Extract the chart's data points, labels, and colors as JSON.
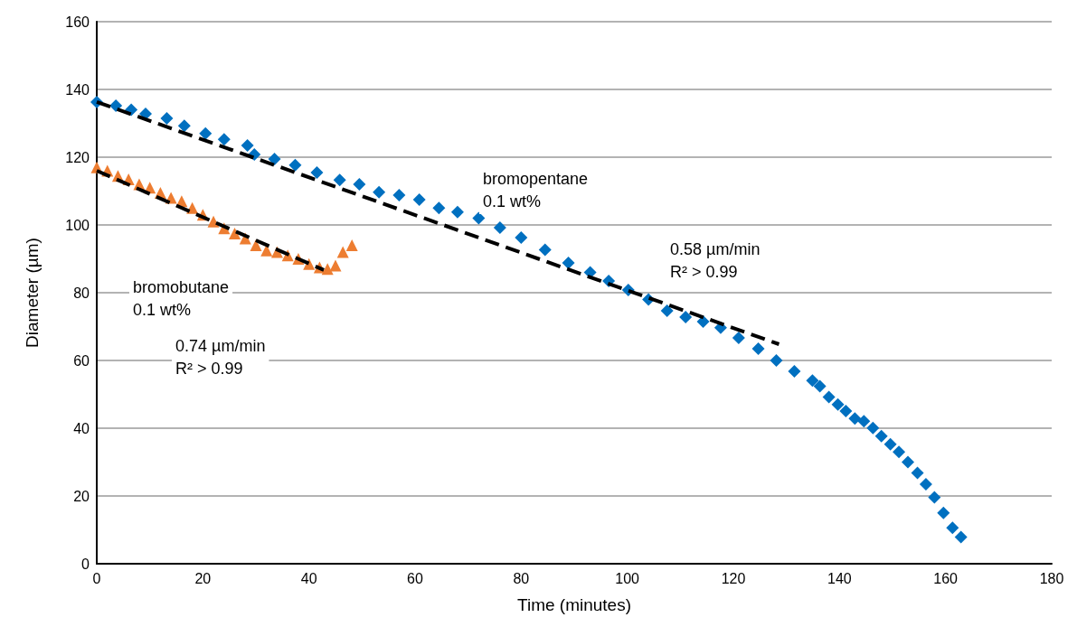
{
  "chart_data": {
    "type": "scatter",
    "xlabel": "Time (minutes)",
    "ylabel": "Diameter (µm)",
    "xlim": [
      0,
      180
    ],
    "xticks": [
      0,
      20,
      40,
      60,
      80,
      100,
      120,
      140,
      160,
      180
    ],
    "ylim": [
      0,
      160
    ],
    "yticks": [
      0,
      20,
      40,
      60,
      80,
      100,
      120,
      140,
      160
    ],
    "grid": "y",
    "series": [
      {
        "color": "#0070c0",
        "marker": "diamond",
        "x": [
          0,
          3.6,
          6.5,
          9.2,
          13.2,
          16.5,
          20.5,
          24,
          28.4,
          29.7,
          33.5,
          37.4,
          41.5,
          45.8,
          49.5,
          53.2,
          57,
          60.8,
          64.5,
          68,
          72,
          76,
          80,
          84.5,
          88.9,
          93,
          96.5,
          100.2,
          104,
          107.5,
          111,
          114.3,
          117.6,
          121,
          124.7,
          128.1,
          131.5,
          134.9,
          136.3,
          138,
          139.7,
          141.2,
          142.9,
          144.6,
          146.3,
          147.9,
          149.6,
          151.2,
          152.9,
          154.7,
          156.3,
          157.9,
          159.6,
          161.3,
          162.9
        ],
        "values": [
          136.3,
          135.2,
          134,
          132.8,
          131.5,
          129.3,
          127,
          125.3,
          123.5,
          120.8,
          119.5,
          117.7,
          115.5,
          113.3,
          112,
          109.7,
          108.8,
          107.5,
          105,
          103.8,
          102,
          99.2,
          96.3,
          92.7,
          88.8,
          86,
          83.5,
          80.8,
          78,
          74.7,
          72.8,
          71.5,
          69.7,
          66.7,
          63.5,
          60,
          56.8,
          54.1,
          52.4,
          49.2,
          47,
          45.1,
          42.9,
          42.1,
          40.1,
          37.7,
          35.3,
          33,
          30,
          26.8,
          23.5,
          19.6,
          15,
          10.6,
          7.9
        ]
      },
      {
        "color": "#ed7d31",
        "marker": "triangle",
        "x": [
          0,
          2,
          4,
          6,
          8,
          10,
          12,
          14,
          16,
          18,
          20,
          22,
          24,
          26,
          28,
          30,
          32,
          34,
          36,
          38,
          40,
          42,
          43.5,
          45,
          46.4,
          48.1
        ],
        "values": [
          117,
          116,
          114.5,
          113.5,
          112,
          111,
          109.5,
          108,
          107,
          105,
          103,
          101,
          99,
          97.5,
          96,
          94,
          92.5,
          92,
          91,
          90,
          88.5,
          87.5,
          87,
          88,
          92,
          94
        ]
      },
      {
        "type": "line",
        "color": "#000000",
        "marker": "none",
        "line_style": "dashed",
        "x": [
          0,
          128.6
        ],
        "values": [
          136.3,
          64.8
        ]
      },
      {
        "type": "line",
        "color": "#000000",
        "marker": "none",
        "line_style": "dashed",
        "x": [
          0,
          42.8
        ],
        "values": [
          116,
          86.7
        ]
      }
    ],
    "annotations": [
      "bromopentane\n0.1 wt%",
      "0.58 µm/min\nR² > 0.99",
      "bromobutane\n0.1 wt%",
      "0.74 µm/min\nR² > 0.99"
    ]
  }
}
